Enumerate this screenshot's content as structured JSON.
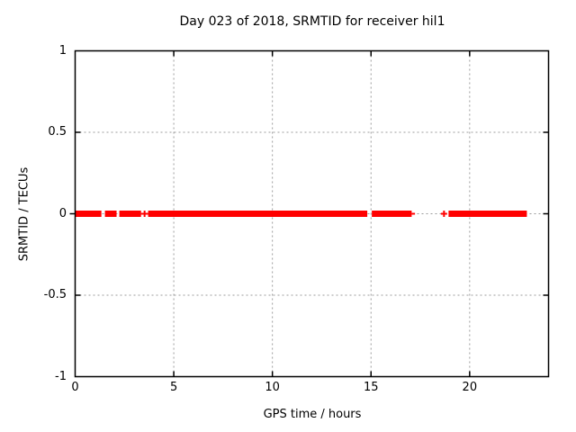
{
  "chart_data": {
    "type": "scatter",
    "title": "Day 023 of 2018, SRMTID for receiver hil1",
    "xlabel": "GPS time / hours",
    "ylabel": "SRMTID / TECUs",
    "xlim": [
      0,
      24
    ],
    "ylim": [
      -1,
      1
    ],
    "grid": true,
    "legend": "none",
    "colors": {
      "data": "#ff0000",
      "grid": "#9b9b9b",
      "axis": "#000000",
      "background": "#ffffff"
    },
    "xticks": [
      {
        "value": 0,
        "label": "0"
      },
      {
        "value": 5,
        "label": "5"
      },
      {
        "value": 10,
        "label": "10"
      },
      {
        "value": 15,
        "label": "15"
      },
      {
        "value": 20,
        "label": "20"
      }
    ],
    "yticks": [
      {
        "value": 1,
        "label": "1"
      },
      {
        "value": 0.5,
        "label": "0.5"
      },
      {
        "value": 0,
        "label": "0"
      },
      {
        "value": -0.5,
        "label": "-0.5"
      },
      {
        "value": -1,
        "label": "-1"
      }
    ],
    "series": [
      {
        "name": "SRMTID",
        "color": "#ff0000",
        "marker": "plus",
        "y_value": 0,
        "coverage_segments_hours": [
          {
            "start": 0.0,
            "end": 1.33,
            "density": "dense"
          },
          {
            "start": 1.51,
            "end": 2.1,
            "density": "dense"
          },
          {
            "start": 2.24,
            "end": 3.34,
            "density": "dense"
          },
          {
            "start": 3.34,
            "end": 3.7,
            "density": "sparse"
          },
          {
            "start": 3.7,
            "end": 14.81,
            "density": "dense"
          },
          {
            "start": 15.04,
            "end": 17.06,
            "density": "dense"
          },
          {
            "start": 17.06,
            "end": 17.23,
            "density": "sparse"
          },
          {
            "start": 18.93,
            "end": 22.9,
            "density": "dense"
          }
        ],
        "isolated_points_hours": [
          3.52,
          18.7
        ]
      }
    ]
  }
}
